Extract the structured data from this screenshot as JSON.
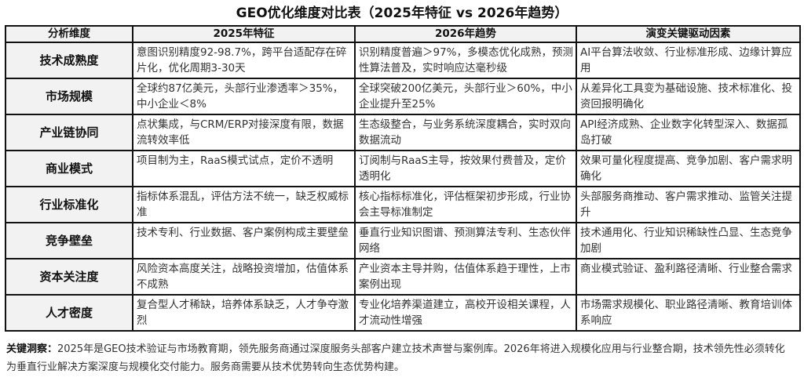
{
  "title": "GEO优化维度对比表（2025年特征 vs 2026年趋势）",
  "table": {
    "headers": [
      "分析维度",
      "2025年特征",
      "2026年趋势",
      "演变关键驱动因素"
    ],
    "rows": [
      [
        "技术成熟度",
        "意图识别精度92-98.7%，跨平台适配存在碎片化，优化周期3-30天",
        "识别精度普遍＞97%，多模态优化成熟，预测性算法普及，实时响应达毫秒级",
        "AI平台算法收敛、行业标准形成、边缘计算应用"
      ],
      [
        "市场规模",
        "全球约87亿美元，头部行业渗透率＞35%，中小企业＜8%",
        "全球突破200亿美元，头部行业＞60%，中小企业提升至25%",
        "从差异化工具变为基础设施、技术标准化、投资回报明确化"
      ],
      [
        "产业链协同",
        "点状集成，与CRM/ERP对接深度有限，数据流转效率低",
        "生态级整合，与业务系统深度耦合，实时双向数据流动",
        "API经济成熟、企业数字化转型深入、数据孤岛打破"
      ],
      [
        "商业模式",
        "项目制为主，RaaS模式试点，定价不透明",
        "订阅制与RaaS主导，按效果付费普及，定价透明化",
        "效果可量化程度提高、竞争加剧、客户需求明确化"
      ],
      [
        "行业标准化",
        "指标体系混乱，评估方法不统一，缺乏权威标准",
        "核心指标标准化，评估框架初步形成，行业协会主导标准制定",
        "头部服务商推动、客户需求推动、监管关注提升"
      ],
      [
        "竞争壁垒",
        "技术专利、行业数据、客户案例构成主要壁垒",
        "垂直行业知识图谱、预测算法专利、生态伙伴网络",
        "技术通用化、行业知识稀缺性凸显、生态竞争加剧"
      ],
      [
        "资本关注度",
        "风险资本高度关注，战略投资增加，估值体系不成熟",
        "产业资本主导并购，估值体系趋于理性，上市案例出现",
        "商业模式验证、盈利路径清晰、行业整合需求"
      ],
      [
        "人才密度",
        "复合型人才稀缺，培养体系缺乏，人才争夺激烈",
        "专业化培养渠道建立，高校开设相关课程，人才流动性增强",
        "市场需求规模化、职业路径清晰、教育培训体系响应"
      ]
    ]
  },
  "footer": {
    "label": "关键洞察：",
    "text": "2025年是GEO技术验证与市场教育期，领先服务商通过深度服务头部客户建立技术声誉与案例库。2026年将进入规模化应用与行业整合期，技术领先性必须转化为垂直行业解决方案深度与规模化交付能力。服务商需要从技术优势转向生态优势构建。"
  }
}
